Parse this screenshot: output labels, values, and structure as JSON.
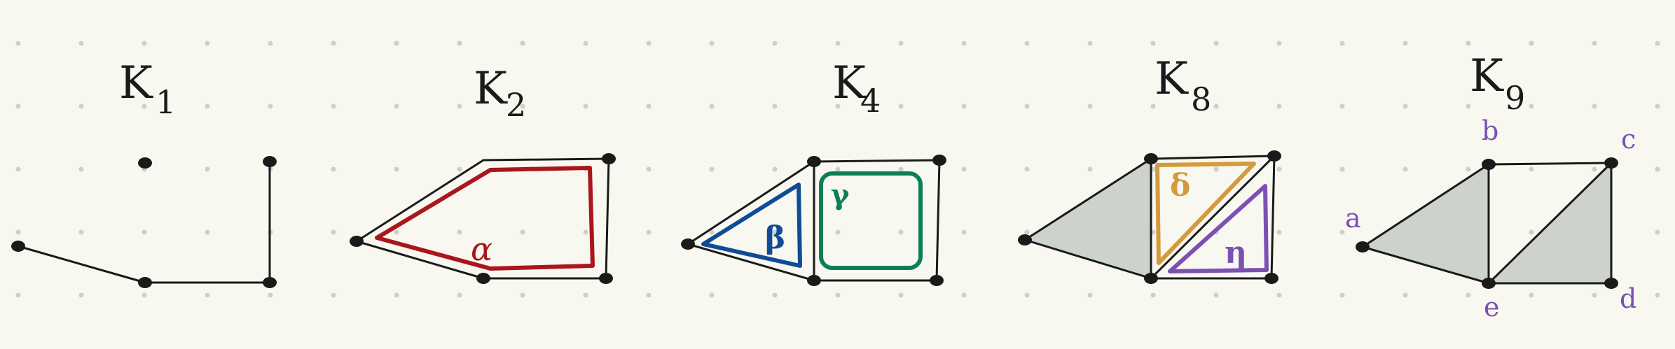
{
  "colors": {
    "background": "#f8f8f1",
    "ink": "#1a1a1a",
    "dot_grid": "#cfcfc6",
    "face_fill": "#cdd3ca",
    "red": "#a9161c",
    "blue": "#0f4c97",
    "green": "#0b8056",
    "orange": "#d39a3e",
    "violet": "#7b50b3"
  },
  "panels": [
    {
      "id": "k1",
      "title": "K",
      "subscript": "1"
    },
    {
      "id": "k2",
      "title": "K",
      "subscript": "2"
    },
    {
      "id": "k4",
      "title": "K",
      "subscript": "4"
    },
    {
      "id": "k8",
      "title": "K",
      "subscript": "8"
    },
    {
      "id": "k9",
      "title": "K",
      "subscript": "9"
    }
  ],
  "k2": {
    "face_label": "α",
    "face_color": "red"
  },
  "k4": {
    "faces": [
      {
        "label": "β",
        "color": "blue"
      },
      {
        "label": "γ",
        "color": "green"
      }
    ]
  },
  "k8": {
    "faces": [
      {
        "label": "δ",
        "color": "orange"
      },
      {
        "label": "η",
        "color": "violet"
      }
    ]
  },
  "k9": {
    "vertex_labels": [
      "a",
      "b",
      "c",
      "d",
      "e"
    ],
    "label_color": "violet"
  }
}
